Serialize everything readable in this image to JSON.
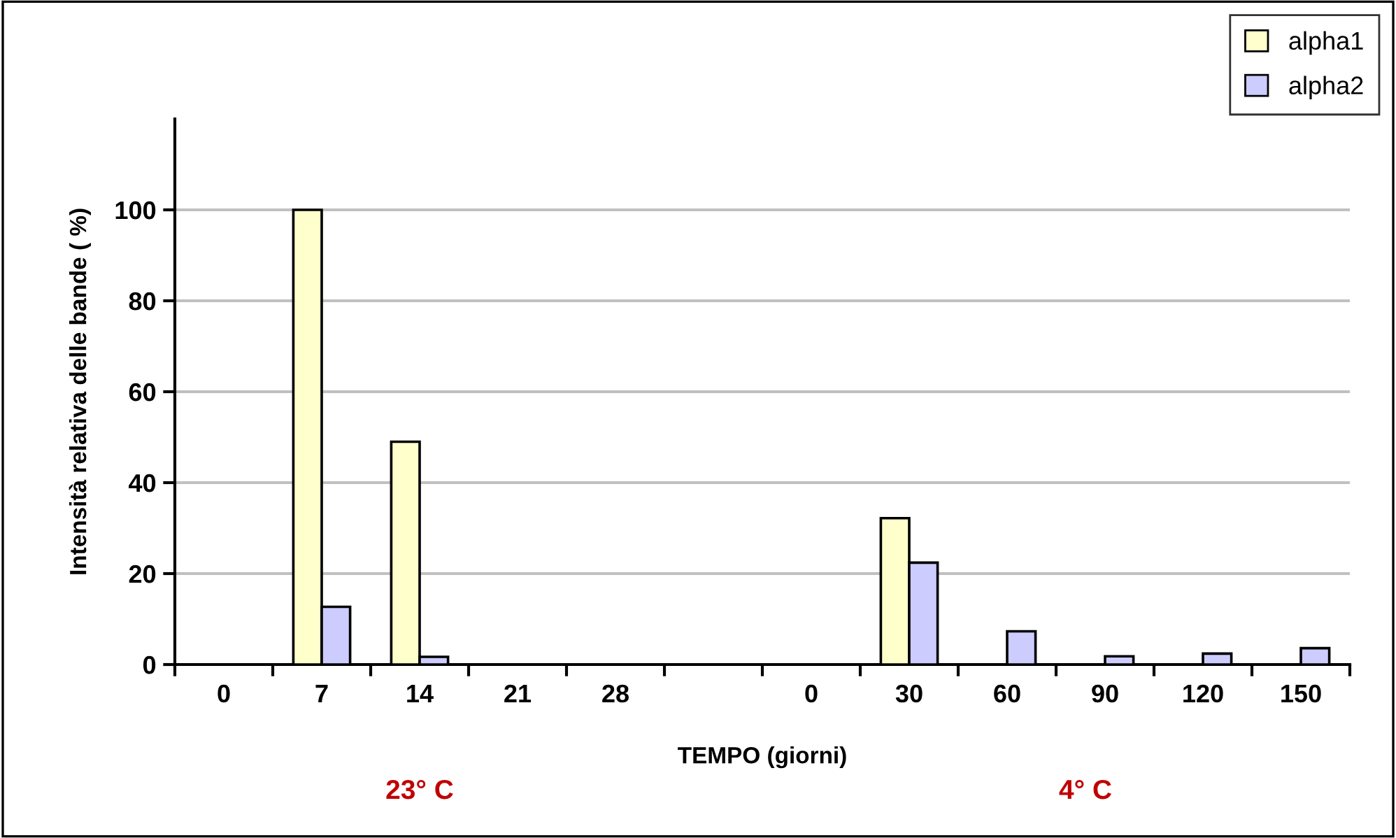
{
  "chart_data": {
    "type": "bar",
    "xlabel": "TEMPO (giorni)",
    "ylabel": "Intensità relativa delle bande ( %)",
    "categories": [
      "0",
      "7",
      "14",
      "21",
      "28",
      null,
      "0",
      "30",
      "60",
      "90",
      "120",
      "150"
    ],
    "series": [
      {
        "name": "alpha1",
        "color": "#ffffcc",
        "values": [
          null,
          100,
          49,
          null,
          null,
          null,
          null,
          32.2,
          null,
          null,
          null,
          null
        ]
      },
      {
        "name": "alpha2",
        "color": "#ccccff",
        "values": [
          null,
          12.7,
          1.7,
          null,
          null,
          null,
          null,
          22.4,
          7.3,
          1.8,
          2.4,
          3.6
        ]
      }
    ],
    "ylim": [
      0,
      120
    ],
    "yticks": [
      0,
      20,
      40,
      60,
      80,
      100
    ],
    "grid": "y",
    "legend": "top right",
    "annotations": [
      "23° C",
      "4° C"
    ]
  }
}
